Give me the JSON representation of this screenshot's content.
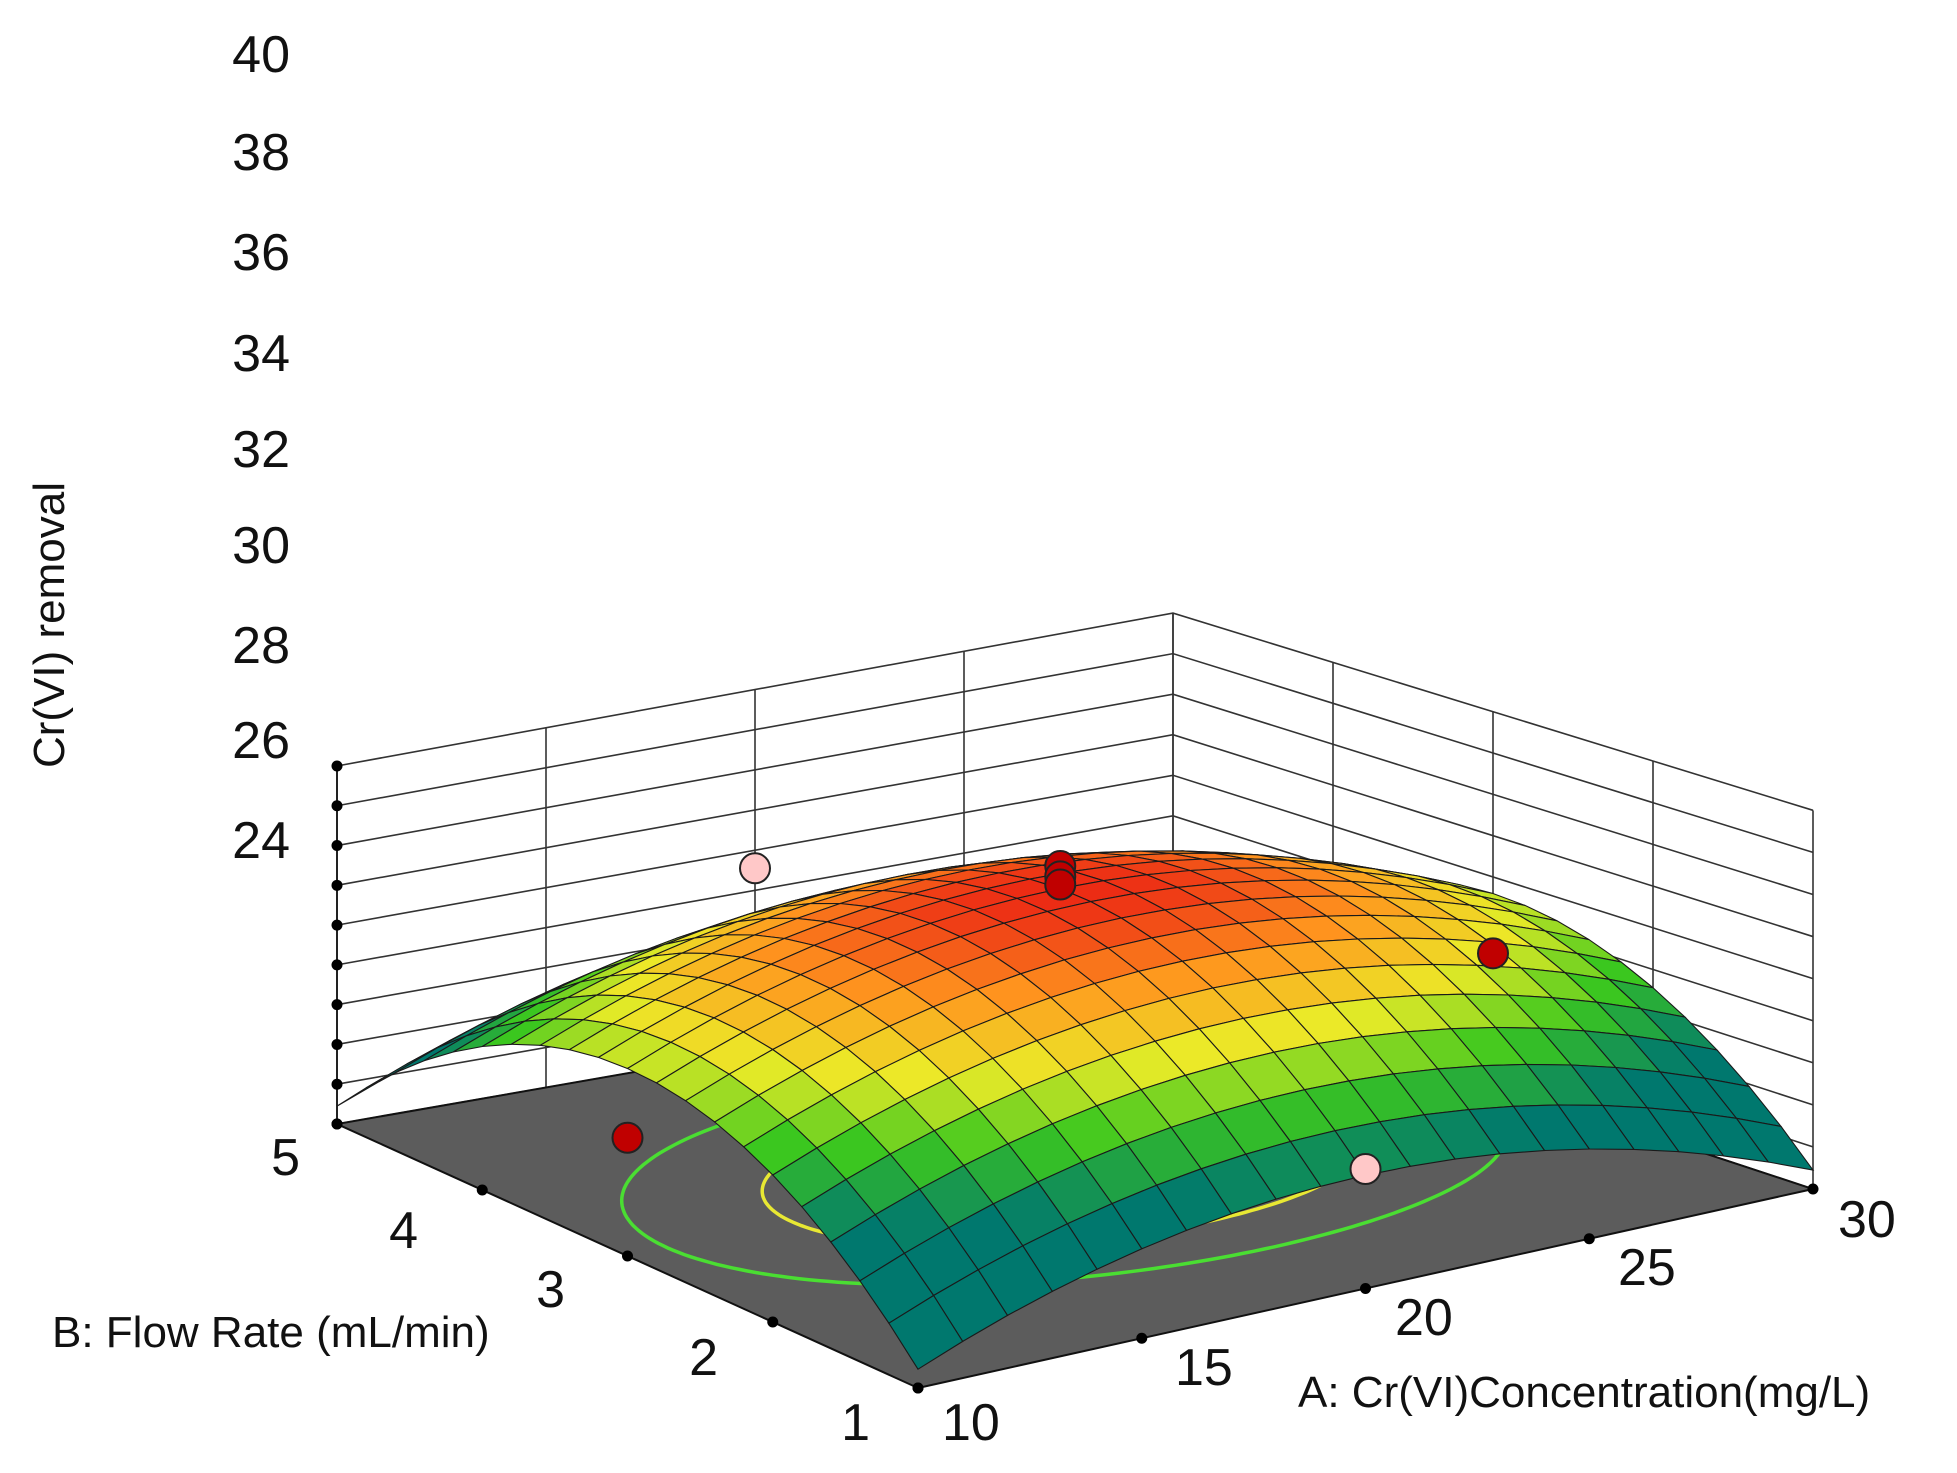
{
  "chart_data": {
    "type": "surface3d",
    "title": "",
    "xlabel": "A: Cr(VI)Concentration(mg/L)",
    "ylabel": "B: Flow Rate  (mL/min)",
    "zlabel": "Cr(VI) removal",
    "xlim": [
      10,
      30
    ],
    "ylim": [
      1,
      5
    ],
    "zlim": [
      22,
      40
    ],
    "x_ticks": [
      10,
      15,
      20,
      25,
      30
    ],
    "y_ticks": [
      1,
      2,
      3,
      4,
      5
    ],
    "z_ticks": [
      24,
      26,
      28,
      30,
      32,
      34,
      36,
      38,
      40
    ],
    "x_tick_labels": [
      "10",
      "15",
      "20",
      "25",
      "30"
    ],
    "y_tick_labels": [
      "1",
      "2",
      "3",
      "4",
      "5"
    ],
    "z_tick_labels": [
      "24",
      "26",
      "28",
      "30",
      "32",
      "34",
      "36",
      "38",
      "40"
    ],
    "surface_grid": 20,
    "surface_model": {
      "center": [
        20,
        3
      ],
      "peak": 35.7,
      "a_curvature": 4.5,
      "b_curvature": 8.3,
      "interaction": 0
    },
    "contour_levels": [
      32,
      34,
      35
    ],
    "contour_colors": [
      "#4ade32",
      "#e8e833",
      "#ff9900"
    ],
    "floor_color": "#5c5c5c",
    "design_points": [
      {
        "x": 20,
        "y": 3,
        "z": 36.8,
        "position": "above"
      },
      {
        "x": 20,
        "y": 3,
        "z": 36.3,
        "position": "above"
      },
      {
        "x": 20,
        "y": 3,
        "z": 35.9,
        "position": "above"
      },
      {
        "x": 10,
        "y": 3,
        "z": 27.8,
        "position": "above"
      },
      {
        "x": 30,
        "y": 3,
        "z": 28.3,
        "position": "above"
      },
      {
        "x": 20,
        "y": 5,
        "z": 31.1,
        "position": "below"
      },
      {
        "x": 20,
        "y": 1,
        "z": 27.7,
        "position": "below"
      }
    ],
    "point_colors": {
      "above": "#c00000",
      "below": "#ffc8c8"
    }
  }
}
